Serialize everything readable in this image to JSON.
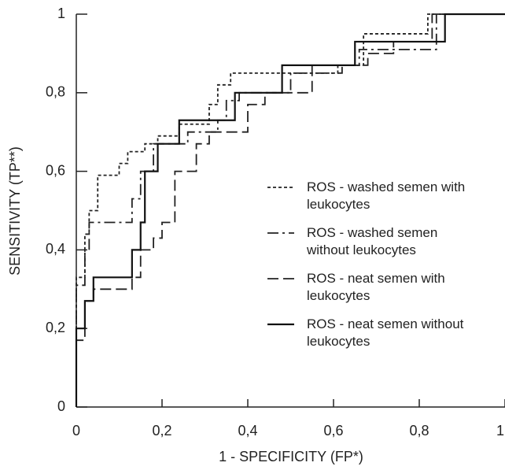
{
  "chart_data": {
    "type": "line",
    "step": true,
    "xlabel": "1 - SPECIFICITY (FP*)",
    "ylabel": "SENSITIVITY (TP**)",
    "xlim": [
      0,
      1
    ],
    "ylim": [
      0,
      1
    ],
    "xticks": [
      0,
      {
        "value": 0.2,
        "label": "0,2"
      },
      {
        "value": 0.4,
        "label": "0,4"
      },
      {
        "value": 0.6,
        "label": "0,6"
      },
      {
        "value": 0.8,
        "label": "0,8"
      },
      1
    ],
    "yticks": [
      0,
      {
        "value": 0.2,
        "label": "0,2"
      },
      {
        "value": 0.4,
        "label": "0,4"
      },
      {
        "value": 0.6,
        "label": "0,6"
      },
      {
        "value": 0.8,
        "label": "0,8"
      },
      1
    ],
    "legend": "right",
    "series": [
      {
        "name": "ROS - washed semen with leukocytes",
        "color": "#222222",
        "line_style": "dotted",
        "x": [
          0,
          0,
          0.02,
          0.02,
          0.03,
          0.03,
          0.05,
          0.05,
          0.1,
          0.1,
          0.12,
          0.12,
          0.16,
          0.16,
          0.19,
          0.19,
          0.24,
          0.24,
          0.31,
          0.31,
          0.33,
          0.33,
          0.36,
          0.36,
          0.61,
          0.61,
          0.67,
          0.67,
          0.82,
          0.82,
          1
        ],
        "values": [
          0,
          0.33,
          0.33,
          0.44,
          0.44,
          0.5,
          0.5,
          0.59,
          0.59,
          0.62,
          0.62,
          0.65,
          0.65,
          0.67,
          0.67,
          0.69,
          0.69,
          0.72,
          0.72,
          0.77,
          0.77,
          0.82,
          0.82,
          0.85,
          0.85,
          0.87,
          0.87,
          0.95,
          0.95,
          1,
          1
        ]
      },
      {
        "name": "ROS - washed semen without leukocytes",
        "color": "#222222",
        "line_style": "dashdot",
        "x": [
          0,
          0,
          0.02,
          0.02,
          0.03,
          0.03,
          0.13,
          0.13,
          0.15,
          0.15,
          0.18,
          0.18,
          0.26,
          0.26,
          0.33,
          0.33,
          0.35,
          0.35,
          0.38,
          0.38,
          0.5,
          0.5,
          0.62,
          0.62,
          0.66,
          0.66,
          0.84,
          0.84,
          1
        ],
        "values": [
          0,
          0.31,
          0.31,
          0.4,
          0.4,
          0.47,
          0.47,
          0.53,
          0.53,
          0.6,
          0.6,
          0.67,
          0.67,
          0.7,
          0.7,
          0.73,
          0.73,
          0.78,
          0.78,
          0.8,
          0.8,
          0.85,
          0.85,
          0.87,
          0.87,
          0.91,
          0.91,
          1,
          1
        ]
      },
      {
        "name": "ROS - neat semen with leukocytes",
        "color": "#222222",
        "line_style": "dashed",
        "x": [
          0,
          0,
          0.02,
          0.02,
          0.04,
          0.04,
          0.13,
          0.13,
          0.15,
          0.15,
          0.18,
          0.18,
          0.2,
          0.2,
          0.23,
          0.23,
          0.28,
          0.28,
          0.31,
          0.31,
          0.4,
          0.4,
          0.44,
          0.44,
          0.55,
          0.55,
          0.68,
          0.68,
          0.74,
          0.74,
          0.83,
          0.83,
          1
        ],
        "values": [
          0,
          0.17,
          0.17,
          0.27,
          0.27,
          0.3,
          0.3,
          0.33,
          0.33,
          0.4,
          0.4,
          0.43,
          0.43,
          0.47,
          0.47,
          0.6,
          0.6,
          0.67,
          0.67,
          0.7,
          0.7,
          0.77,
          0.77,
          0.8,
          0.8,
          0.87,
          0.87,
          0.9,
          0.9,
          0.93,
          0.93,
          1,
          1
        ]
      },
      {
        "name": "ROS - neat semen without leukocytes",
        "color": "#111111",
        "line_style": "solid",
        "x": [
          0,
          0,
          0.02,
          0.02,
          0.04,
          0.04,
          0.13,
          0.13,
          0.15,
          0.15,
          0.16,
          0.16,
          0.19,
          0.19,
          0.24,
          0.24,
          0.37,
          0.37,
          0.48,
          0.48,
          0.65,
          0.65,
          0.86,
          0.86,
          1
        ],
        "values": [
          0,
          0.2,
          0.2,
          0.27,
          0.27,
          0.33,
          0.33,
          0.4,
          0.4,
          0.47,
          0.47,
          0.6,
          0.6,
          0.67,
          0.67,
          0.73,
          0.73,
          0.8,
          0.8,
          0.87,
          0.87,
          0.93,
          0.93,
          1,
          1
        ]
      }
    ]
  }
}
